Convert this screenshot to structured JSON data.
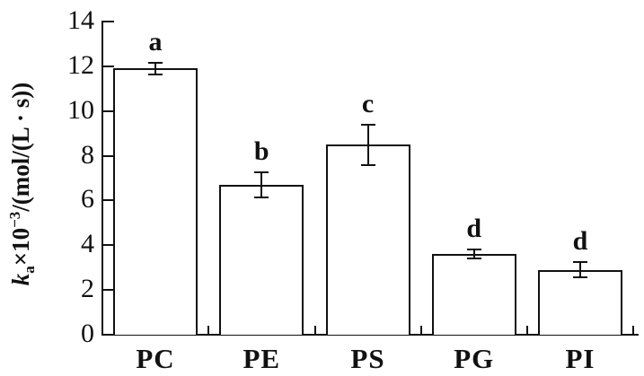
{
  "chart_data": {
    "type": "bar",
    "title": "",
    "xlabel": "",
    "ylabel": "ka×10−3/(mol/(L · s))",
    "ylabel_parts": {
      "symbol": "k",
      "symbol_sub": "a",
      "multiplier": "×10",
      "exponent": "−3",
      "units": "/(mol/(L · s))"
    },
    "categories": [
      "PC",
      "PE",
      "PS",
      "PG",
      "PI"
    ],
    "values": [
      11.9,
      6.7,
      8.5,
      3.6,
      2.9
    ],
    "errors": [
      0.25,
      0.55,
      0.9,
      0.2,
      0.35
    ],
    "significance_letters": [
      "a",
      "b",
      "c",
      "d",
      "d"
    ],
    "ylim": [
      0,
      14
    ],
    "yticks": [
      0,
      2,
      4,
      6,
      8,
      10,
      12,
      14
    ],
    "grid": false,
    "legend": null,
    "bar_fill": "#ffffff",
    "line_color": "#111111",
    "background": "#ffffff"
  }
}
